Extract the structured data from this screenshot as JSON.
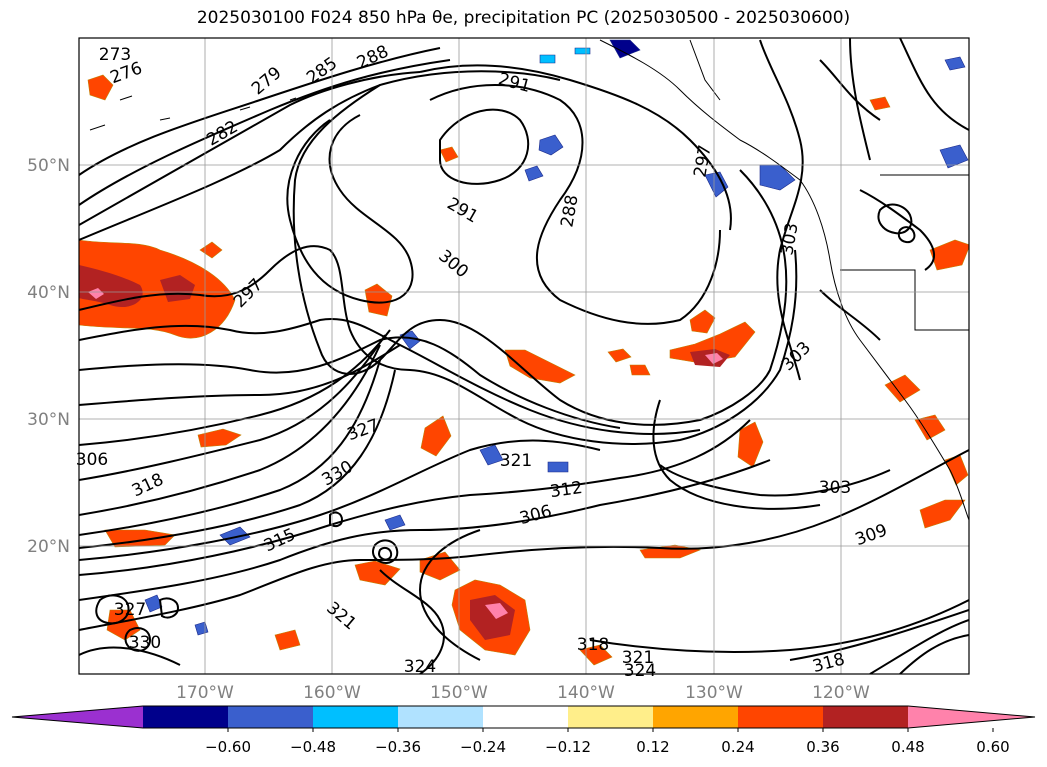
{
  "title": "2025030100 F024 850 hPa θe, precipitation PC (2025030500 - 2025030600)",
  "map": {
    "lat_labels": [
      "50°N",
      "40°N",
      "30°N",
      "20°N"
    ],
    "lon_labels": [
      "170°W",
      "160°W",
      "150°W",
      "140°W",
      "130°W",
      "120°W"
    ],
    "contour_labels": [
      {
        "text": "273"
      },
      {
        "text": "276"
      },
      {
        "text": "279"
      },
      {
        "text": "282"
      },
      {
        "text": "285"
      },
      {
        "text": "288"
      },
      {
        "text": "291"
      },
      {
        "text": "291"
      },
      {
        "text": "288"
      },
      {
        "text": "297"
      },
      {
        "text": "297"
      },
      {
        "text": "300"
      },
      {
        "text": "303"
      },
      {
        "text": "303"
      },
      {
        "text": "303"
      },
      {
        "text": "306"
      },
      {
        "text": "306"
      },
      {
        "text": "309"
      },
      {
        "text": "312"
      },
      {
        "text": "315"
      },
      {
        "text": "318"
      },
      {
        "text": "318"
      },
      {
        "text": "318"
      },
      {
        "text": "321"
      },
      {
        "text": "321"
      },
      {
        "text": "321"
      },
      {
        "text": "324"
      },
      {
        "text": "324"
      },
      {
        "text": "327"
      },
      {
        "text": "327"
      },
      {
        "text": "330"
      },
      {
        "text": "330"
      }
    ]
  },
  "colorbar": {
    "ticks": [
      "−0.60",
      "−0.48",
      "−0.36",
      "−0.24",
      "−0.12",
      "0.12",
      "0.24",
      "0.36",
      "0.48",
      "0.60"
    ],
    "colors": [
      "#9b30d0",
      "#00008b",
      "#3a5fcd",
      "#00bfff",
      "#b0e2ff",
      "#ffffff",
      "#ffee8a",
      "#ffa500",
      "#ff4500",
      "#b22222",
      "#ff82ab"
    ]
  }
}
